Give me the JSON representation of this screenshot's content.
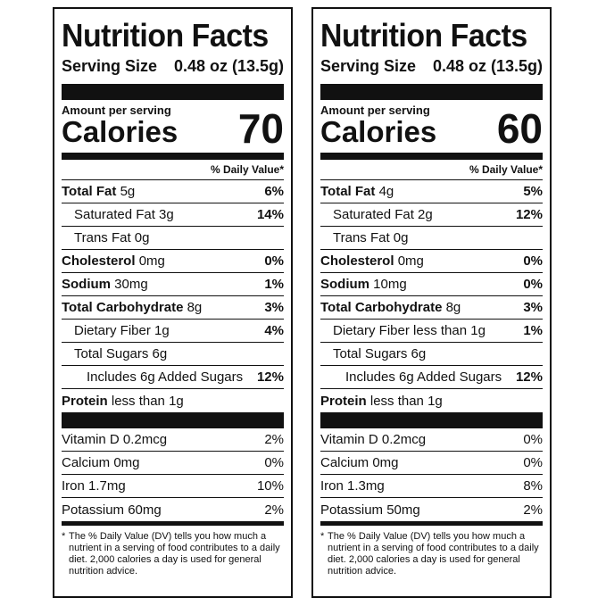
{
  "panels": [
    {
      "title": "Nutrition Facts",
      "serving_label": "Serving Size",
      "serving_value": "0.48 oz (13.5g)",
      "amount_label": "Amount per serving",
      "calories_label": "Calories",
      "calories_value": "70",
      "dv_header": "% Daily Value*",
      "total_fat": {
        "label": "Total Fat",
        "amount": "5g",
        "pct": "6%"
      },
      "sat_fat": {
        "label": "Saturated Fat 3g",
        "pct": "14%"
      },
      "trans_fat": {
        "label": "Trans Fat 0g"
      },
      "cholesterol": {
        "label": "Cholesterol",
        "amount": "0mg",
        "pct": "0%"
      },
      "sodium": {
        "label": "Sodium",
        "amount": "30mg",
        "pct": "1%"
      },
      "carb": {
        "label": "Total Carbohydrate",
        "amount": "8g",
        "pct": "3%"
      },
      "fiber": {
        "label": "Dietary Fiber 1g",
        "pct": "4%"
      },
      "sugars": {
        "label": "Total Sugars 6g"
      },
      "added_sugars": {
        "label": "Includes 6g Added Sugars",
        "pct": "12%"
      },
      "protein": {
        "label": "Protein",
        "amount": "less than 1g"
      },
      "vitamin_d": {
        "label": "Vitamin D 0.2mcg",
        "pct": "2%"
      },
      "calcium": {
        "label": "Calcium 0mg",
        "pct": "0%"
      },
      "iron": {
        "label": "Iron 1.7mg",
        "pct": "10%"
      },
      "potassium": {
        "label": "Potassium 60mg",
        "pct": "2%"
      },
      "footnote_star": "*",
      "footnote": "The % Daily Value (DV) tells you how much a nutrient in a serving of food contributes to a daily diet. 2,000 calories a day is used for general nutrition advice."
    },
    {
      "title": "Nutrition Facts",
      "serving_label": "Serving Size",
      "serving_value": "0.48 oz (13.5g)",
      "amount_label": "Amount per serving",
      "calories_label": "Calories",
      "calories_value": "60",
      "dv_header": "% Daily Value*",
      "total_fat": {
        "label": "Total Fat",
        "amount": "4g",
        "pct": "5%"
      },
      "sat_fat": {
        "label": "Saturated Fat 2g",
        "pct": "12%"
      },
      "trans_fat": {
        "label": "Trans Fat 0g"
      },
      "cholesterol": {
        "label": "Cholesterol",
        "amount": "0mg",
        "pct": "0%"
      },
      "sodium": {
        "label": "Sodium",
        "amount": "10mg",
        "pct": "0%"
      },
      "carb": {
        "label": "Total Carbohydrate",
        "amount": "8g",
        "pct": "3%"
      },
      "fiber": {
        "label": "Dietary Fiber less than 1g",
        "pct": "1%"
      },
      "sugars": {
        "label": "Total Sugars 6g"
      },
      "added_sugars": {
        "label": "Includes 6g Added Sugars",
        "pct": "12%"
      },
      "protein": {
        "label": "Protein",
        "amount": "less than 1g"
      },
      "vitamin_d": {
        "label": "Vitamin D 0.2mcg",
        "pct": "0%"
      },
      "calcium": {
        "label": "Calcium 0mg",
        "pct": "0%"
      },
      "iron": {
        "label": "Iron 1.3mg",
        "pct": "8%"
      },
      "potassium": {
        "label": "Potassium 50mg",
        "pct": "2%"
      },
      "footnote_star": "*",
      "footnote": "The % Daily Value (DV) tells you how much a nutrient in a serving of food contributes to a daily diet. 2,000 calories a day is used for general nutrition advice."
    }
  ]
}
